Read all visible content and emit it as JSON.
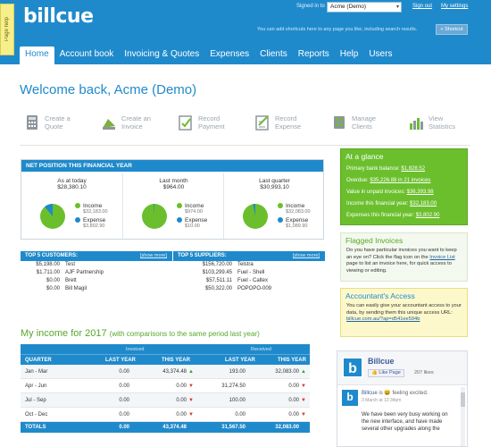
{
  "header": {
    "logo": "billcue",
    "page_help": "Page help",
    "signed_in_label": "Signed in to",
    "account": "Acme (Demo)",
    "sign_out": "Sign out",
    "my_settings": "My settings",
    "shortcut_note": "You can add shortcuts here to any page you like, including search results.",
    "shortcut_button": "+ Shortcut"
  },
  "nav": [
    "Home",
    "Account book",
    "Invoicing & Quotes",
    "Expenses",
    "Clients",
    "Reports",
    "Help",
    "Users"
  ],
  "welcome": "Welcome back, Acme (Demo)",
  "quick_actions": [
    {
      "label1": "Create a",
      "label2": "Quote",
      "icon": "calculator-icon"
    },
    {
      "label1": "Create an",
      "label2": "Invoice",
      "icon": "invoice-icon"
    },
    {
      "label1": "Record",
      "label2": "Payment",
      "icon": "payment-icon"
    },
    {
      "label1": "Record",
      "label2": "Expense",
      "icon": "expense-icon"
    },
    {
      "label1": "Manage",
      "label2": "Clients",
      "icon": "clients-icon"
    },
    {
      "label1": "View",
      "label2": "Statistics",
      "icon": "statistics-icon"
    }
  ],
  "net_position": {
    "title": "NET POSITION THIS FINANCIAL YEAR",
    "columns": [
      {
        "label": "As at today",
        "value": "$28,380.10",
        "income": "$32,183.00",
        "expense": "$3,802.90",
        "income_share": 0.89
      },
      {
        "label": "Last month",
        "value": "$964.00",
        "income": "$974.00",
        "expense": "$10.00",
        "income_share": 0.99
      },
      {
        "label": "Last quarter",
        "value": "$30,993.10",
        "income": "$32,083.00",
        "expense": "$1,089.90",
        "income_share": 0.97
      }
    ],
    "income_label": "Income",
    "expense_label": "Expense"
  },
  "top_customers": {
    "title": "TOP 5 CUSTOMERS:",
    "more": "[show more]",
    "rows": [
      {
        "amount": "$5,198.00",
        "name": "Test"
      },
      {
        "amount": "$1,711.00",
        "name": "AJF Partnership"
      },
      {
        "amount": "$0.00",
        "name": "Brett"
      },
      {
        "amount": "$0.00",
        "name": "Bill Magil"
      }
    ]
  },
  "top_suppliers": {
    "title": "TOP 5 SUPPLIERS:",
    "more": "[show more]",
    "rows": [
      {
        "amount": "$156,720.00",
        "name": "Telstra"
      },
      {
        "amount": "$103,299.45",
        "name": "Fuel - Shell"
      },
      {
        "amount": "$57,511.11",
        "name": "Fuel - Caltex"
      },
      {
        "amount": "$50,322.00",
        "name": "POPOPO-009"
      }
    ]
  },
  "income_section": {
    "title": "My income for 2017",
    "subtitle": "(with comparisons to the same period last year)",
    "invoiced": "Invoiced",
    "received": "Received",
    "headers": [
      "QUARTER",
      "LAST YEAR",
      "THIS YEAR",
      "LAST YEAR",
      "THIS YEAR"
    ],
    "rows": [
      {
        "q": "Jan - Mar",
        "inv_last": "0.00",
        "inv_this": "43,374.48",
        "inv_dir": "up",
        "rec_last": "193.00",
        "rec_this": "32,083.00",
        "rec_dir": "up"
      },
      {
        "q": "Apr - Jun",
        "inv_last": "0.00",
        "inv_this": "0.00",
        "inv_dir": "down",
        "rec_last": "31,274.50",
        "rec_this": "0.00",
        "rec_dir": "down"
      },
      {
        "q": "Jul - Sep",
        "inv_last": "0.00",
        "inv_this": "0.00",
        "inv_dir": "down",
        "rec_last": "100.00",
        "rec_this": "0.00",
        "rec_dir": "down"
      },
      {
        "q": "Oct - Dec",
        "inv_last": "0.00",
        "inv_this": "0.00",
        "inv_dir": "down",
        "rec_last": "0.00",
        "rec_this": "0.00",
        "rec_dir": "down"
      }
    ],
    "totals": {
      "label": "TOTALS",
      "inv_last": "0.00",
      "inv_this": "43,374.48",
      "rec_last": "31,567.50",
      "rec_this": "32,083.00"
    }
  },
  "at_a_glance": {
    "title": "At a glance",
    "rows": [
      {
        "label": "Primary bank balance:",
        "value": "$1,828.52"
      },
      {
        "label": "Overdue:",
        "value": "$35,226.88 in 21 invoices"
      },
      {
        "label": "Value in unpaid invoices:",
        "value": "$36,393.98"
      },
      {
        "label": "Income this financial year:",
        "value": "$32,183.00"
      },
      {
        "label": "Expenses this financial year:",
        "value": "$3,802.90"
      }
    ]
  },
  "flagged": {
    "title": "Flagged Invoices",
    "text1": "Do you have particular invoices you want to keep an eye on? Click the flag icon on the",
    "link": "Invoice List",
    "text2": "page to list an invoice here, for quick access to viewing or editing."
  },
  "accountant": {
    "title": "Accountant's Access",
    "text": "You can easily give your accountant access to your data, by sending them this unique access URL:",
    "url": "billcue.com.au/?ap=d541ee594b"
  },
  "facebook": {
    "page_name": "Billcue",
    "like_button": "Like Page",
    "likes": "207 likes",
    "post_author": "Billcue",
    "post_feeling": "is 😆 feeling excited.",
    "post_time": "3 March at 12:34pm",
    "post_text": "We have been very busy working on the new interface, and have made several other upgrades along the"
  },
  "colors": {
    "brand": "#1f8acb",
    "green": "#6bbf2d",
    "income": "#6bbf2d",
    "expense": "#1f8acb"
  }
}
